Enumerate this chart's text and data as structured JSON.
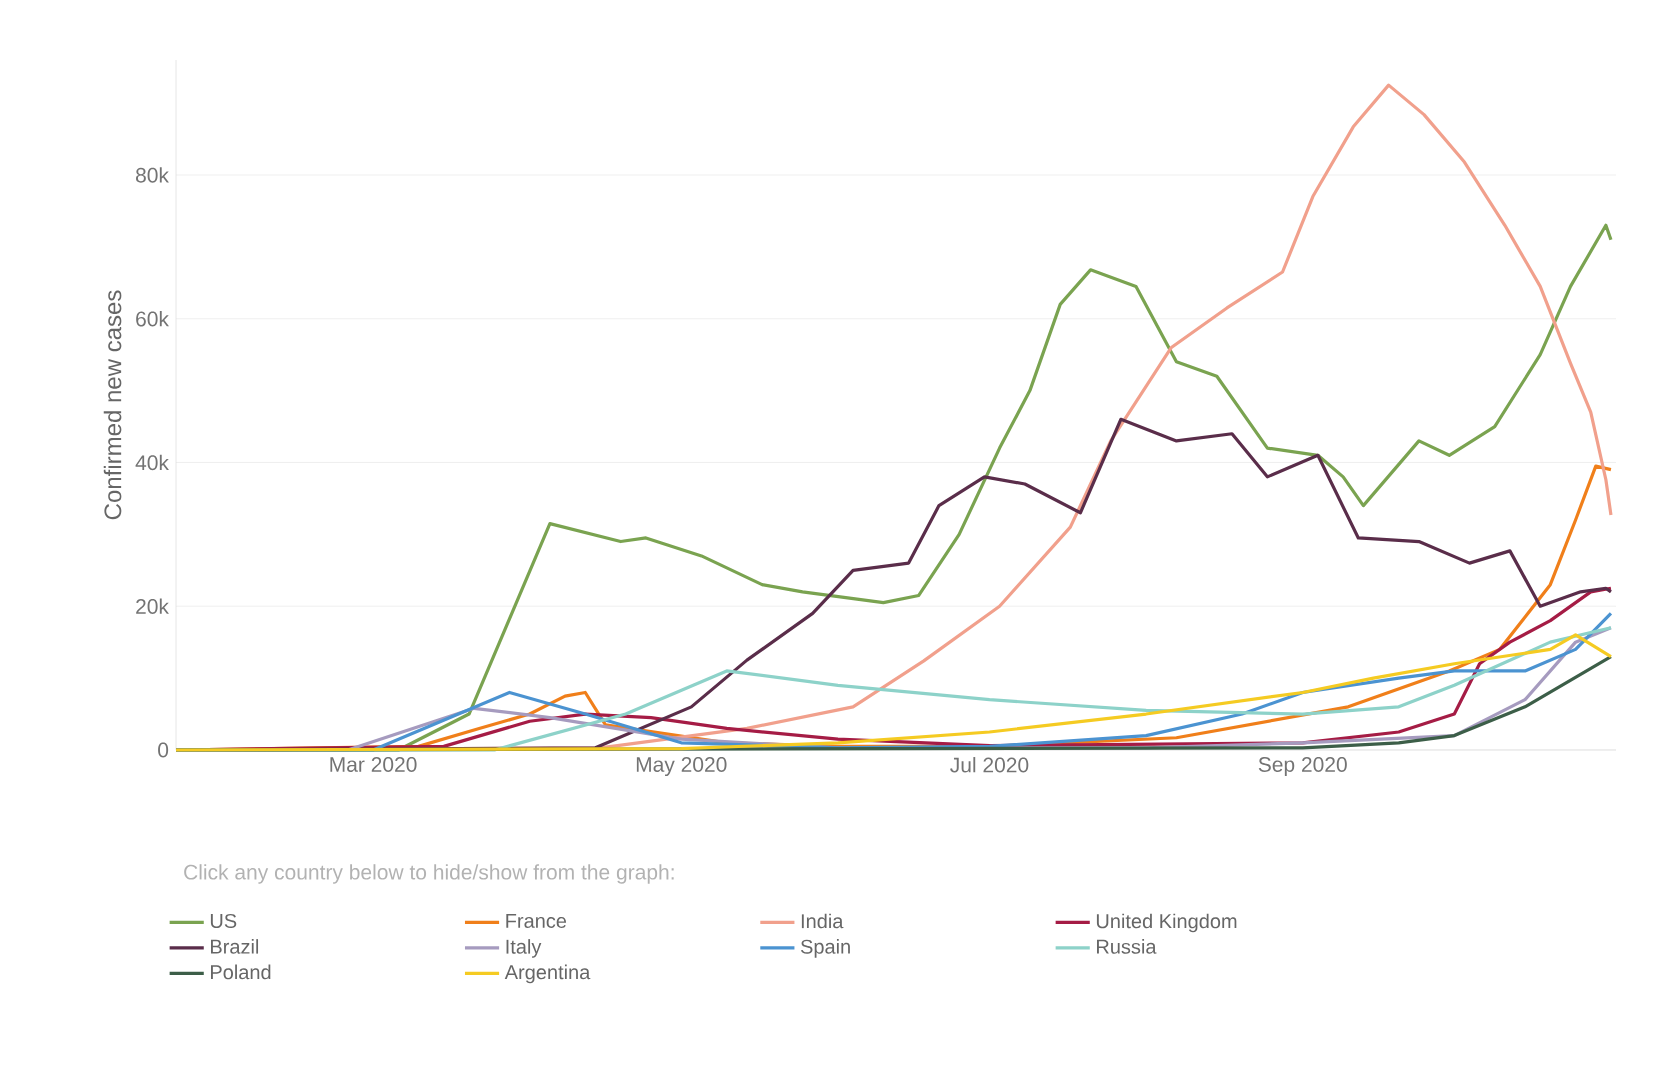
{
  "chart_data": {
    "type": "line",
    "ylabel": "Confirmed new cases",
    "annotations": [
      "Click any country below to hide/show from the graph:"
    ],
    "xlim": [
      "2020-01-22",
      "2020-11-02"
    ],
    "ylim": [
      0,
      96000
    ],
    "xticks": [
      {
        "value": "2020-03-01",
        "label": "Mar 2020"
      },
      {
        "value": "2020-05-01",
        "label": "May 2020"
      },
      {
        "value": "2020-07-01",
        "label": "Jul 2020"
      },
      {
        "value": "2020-09-01",
        "label": "Sep 2020"
      }
    ],
    "yticks": [
      0,
      {
        "value": 20000,
        "label": "20k"
      },
      {
        "value": 40000,
        "label": "40k"
      },
      {
        "value": 60000,
        "label": "60k"
      },
      {
        "value": 80000,
        "label": "80k"
      }
    ],
    "grid": "y",
    "legend": "bottom",
    "line_style": "solid",
    "series": [
      {
        "name": "US",
        "color": "#7aa350",
        "x": [
          "2020-01-22",
          "2020-03-06",
          "2020-03-20",
          "2020-04-05",
          "2020-04-19",
          "2020-04-24",
          "2020-05-05",
          "2020-05-17",
          "2020-05-25",
          "2020-06-10",
          "2020-06-17",
          "2020-06-25",
          "2020-07-03",
          "2020-07-09",
          "2020-07-15",
          "2020-07-21",
          "2020-07-30",
          "2020-08-07",
          "2020-08-15",
          "2020-08-25",
          "2020-09-04",
          "2020-09-09",
          "2020-09-13",
          "2020-09-24",
          "2020-09-30",
          "2020-10-09",
          "2020-10-18",
          "2020-10-24",
          "2020-10-31",
          "2020-11-01"
        ],
        "values": [
          0,
          0,
          5000,
          31500,
          29000,
          29500,
          27000,
          23000,
          22000,
          20500,
          21500,
          30000,
          42000,
          50000,
          62000,
          66800,
          64500,
          54000,
          52000,
          42000,
          41000,
          38000,
          34000,
          43000,
          41000,
          45000,
          55000,
          64500,
          73000,
          71000
        ]
      },
      {
        "name": "France",
        "color": "#f07f1a",
        "x": [
          "2020-01-22",
          "2020-03-10",
          "2020-03-22",
          "2020-04-01",
          "2020-04-08",
          "2020-04-12",
          "2020-04-16",
          "2020-05-10",
          "2020-06-01",
          "2020-07-01",
          "2020-08-07",
          "2020-09-10",
          "2020-09-30",
          "2020-10-10",
          "2020-10-20",
          "2020-10-25",
          "2020-10-29",
          "2020-11-01"
        ],
        "values": [
          0,
          500,
          3000,
          5000,
          7500,
          8000,
          3500,
          1000,
          500,
          500,
          1700,
          6000,
          11000,
          14000,
          23000,
          32000,
          39500,
          39000
        ]
      },
      {
        "name": "India",
        "color": "#f1a08c",
        "x": [
          "2020-01-22",
          "2020-04-15",
          "2020-05-14",
          "2020-06-04",
          "2020-06-18",
          "2020-07-03",
          "2020-07-17",
          "2020-07-25",
          "2020-08-06",
          "2020-08-17",
          "2020-08-28",
          "2020-09-03",
          "2020-09-11",
          "2020-09-18",
          "2020-09-25",
          "2020-10-03",
          "2020-10-11",
          "2020-10-18",
          "2020-10-24",
          "2020-10-28",
          "2020-10-31",
          "2020-11-01"
        ],
        "values": [
          0,
          300,
          3000,
          6000,
          12400,
          20000,
          31000,
          43000,
          56000,
          61500,
          66500,
          77000,
          86700,
          92500,
          88400,
          81800,
          73000,
          64500,
          53800,
          47000,
          37600,
          32700
        ]
      },
      {
        "name": "United Kingdom",
        "color": "#a51c45",
        "x": [
          "2020-01-22",
          "2020-03-15",
          "2020-04-01",
          "2020-04-12",
          "2020-04-25",
          "2020-05-10",
          "2020-06-01",
          "2020-07-01",
          "2020-08-01",
          "2020-09-01",
          "2020-09-20",
          "2020-10-01",
          "2020-10-06",
          "2020-10-12",
          "2020-10-20",
          "2020-10-28",
          "2020-11-01"
        ],
        "values": [
          0,
          500,
          4000,
          5000,
          4500,
          3000,
          1500,
          600,
          800,
          1000,
          2500,
          5000,
          12000,
          15000,
          18000,
          22000,
          22500
        ]
      },
      {
        "name": "Brazil",
        "color": "#5a2d4a",
        "x": [
          "2020-01-22",
          "2020-04-14",
          "2020-05-03",
          "2020-05-14",
          "2020-05-27",
          "2020-06-04",
          "2020-06-15",
          "2020-06-21",
          "2020-06-30",
          "2020-07-08",
          "2020-07-19",
          "2020-07-27",
          "2020-08-07",
          "2020-08-18",
          "2020-08-25",
          "2020-09-04",
          "2020-09-12",
          "2020-09-24",
          "2020-10-04",
          "2020-10-12",
          "2020-10-18",
          "2020-10-26",
          "2020-10-31",
          "2020-11-01"
        ],
        "values": [
          0,
          300,
          6000,
          12500,
          19000,
          25000,
          26000,
          34000,
          38000,
          37000,
          33000,
          46000,
          43000,
          44000,
          38000,
          41000,
          29500,
          29000,
          26000,
          27700,
          20000,
          22000,
          22500,
          22000
        ]
      },
      {
        "name": "Italy",
        "color": "#a69bbf",
        "x": [
          "2020-01-22",
          "2020-02-25",
          "2020-03-21",
          "2020-04-05",
          "2020-05-01",
          "2020-06-01",
          "2020-08-01",
          "2020-09-01",
          "2020-10-01",
          "2020-10-15",
          "2020-10-25",
          "2020-11-01"
        ],
        "values": [
          0,
          0,
          5800,
          4500,
          1500,
          300,
          300,
          1000,
          2000,
          7000,
          15000,
          17000
        ]
      },
      {
        "name": "Spain",
        "color": "#4b93d1",
        "x": [
          "2020-01-22",
          "2020-03-01",
          "2020-03-28",
          "2020-04-12",
          "2020-05-01",
          "2020-06-01",
          "2020-07-01",
          "2020-08-01",
          "2020-08-20",
          "2020-09-01",
          "2020-09-20",
          "2020-10-01",
          "2020-10-15",
          "2020-10-25",
          "2020-11-01"
        ],
        "values": [
          0,
          0,
          8000,
          5000,
          1000,
          300,
          500,
          2000,
          5000,
          8000,
          10000,
          11000,
          11000,
          14000,
          19000
        ]
      },
      {
        "name": "Russia",
        "color": "#8dd2c9",
        "x": [
          "2020-01-22",
          "2020-03-25",
          "2020-04-20",
          "2020-05-10",
          "2020-06-01",
          "2020-07-01",
          "2020-08-01",
          "2020-09-01",
          "2020-09-20",
          "2020-10-01",
          "2020-10-20",
          "2020-11-01"
        ],
        "values": [
          0,
          0,
          5000,
          11000,
          9000,
          7000,
          5500,
          5000,
          6000,
          9000,
          15000,
          17000
        ]
      },
      {
        "name": "Poland",
        "color": "#3c5e48",
        "x": [
          "2020-01-22",
          "2020-09-01",
          "2020-09-20",
          "2020-10-01",
          "2020-10-15",
          "2020-11-01"
        ],
        "values": [
          0,
          300,
          1000,
          2000,
          6000,
          13000
        ]
      },
      {
        "name": "Argentina",
        "color": "#f5cb22",
        "x": [
          "2020-01-22",
          "2020-05-01",
          "2020-06-01",
          "2020-07-01",
          "2020-08-01",
          "2020-09-01",
          "2020-09-15",
          "2020-10-01",
          "2020-10-20",
          "2020-10-25",
          "2020-11-01"
        ],
        "values": [
          0,
          200,
          1000,
          2500,
          5000,
          8000,
          10000,
          12000,
          14000,
          16000,
          13000
        ]
      }
    ]
  }
}
